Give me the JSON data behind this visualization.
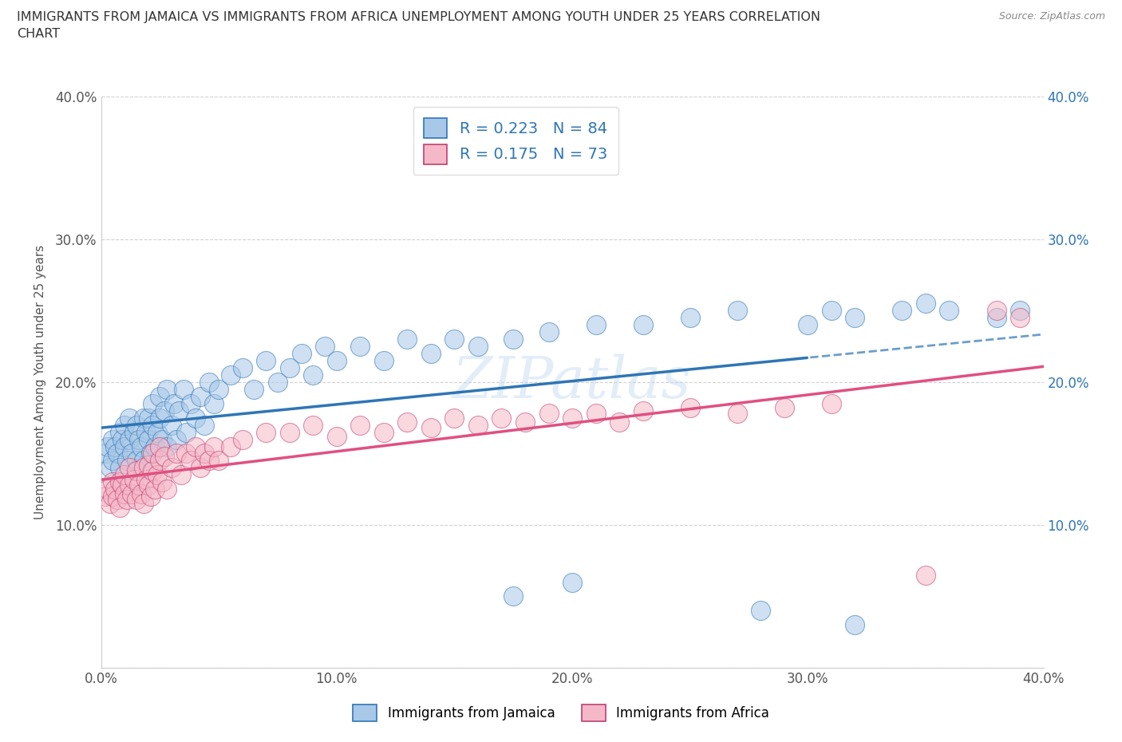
{
  "title": "IMMIGRANTS FROM JAMAICA VS IMMIGRANTS FROM AFRICA UNEMPLOYMENT AMONG YOUTH UNDER 25 YEARS CORRELATION\nCHART",
  "source": "Source: ZipAtlas.com",
  "ylabel": "Unemployment Among Youth under 25 years",
  "legend_label_jamaica": "Immigrants from Jamaica",
  "legend_label_africa": "Immigrants from Africa",
  "xlim": [
    0.0,
    0.4
  ],
  "ylim": [
    0.0,
    0.4
  ],
  "xticks": [
    0.0,
    0.1,
    0.2,
    0.3,
    0.4
  ],
  "yticks": [
    0.0,
    0.1,
    0.2,
    0.3,
    0.4
  ],
  "xticklabels": [
    "0.0%",
    "10.0%",
    "20.0%",
    "30.0%",
    "40.0%"
  ],
  "yticklabels_left": [
    "",
    "10.0%",
    "20.0%",
    "30.0%",
    "40.0%"
  ],
  "yticklabels_right": [
    "",
    "10.0%",
    "20.0%",
    "30.0%",
    "40.0%"
  ],
  "r_jamaica": 0.223,
  "n_jamaica": 84,
  "r_africa": 0.175,
  "n_africa": 73,
  "color_jamaica": "#A8C8E8",
  "color_africa": "#F5B8C8",
  "line_color_jamaica": "#2E75B6",
  "line_color_africa": "#E05080",
  "background_color": "#FFFFFF",
  "jamaica_x": [
    0.002,
    0.003,
    0.004,
    0.005,
    0.005,
    0.006,
    0.007,
    0.008,
    0.008,
    0.009,
    0.01,
    0.01,
    0.011,
    0.012,
    0.012,
    0.013,
    0.014,
    0.015,
    0.015,
    0.016,
    0.017,
    0.018,
    0.018,
    0.019,
    0.02,
    0.02,
    0.021,
    0.022,
    0.022,
    0.023,
    0.024,
    0.025,
    0.025,
    0.026,
    0.027,
    0.028,
    0.028,
    0.03,
    0.031,
    0.032,
    0.033,
    0.035,
    0.036,
    0.038,
    0.04,
    0.042,
    0.044,
    0.046,
    0.048,
    0.05,
    0.055,
    0.06,
    0.065,
    0.07,
    0.075,
    0.08,
    0.085,
    0.09,
    0.095,
    0.1,
    0.11,
    0.12,
    0.13,
    0.14,
    0.15,
    0.16,
    0.175,
    0.19,
    0.21,
    0.23,
    0.25,
    0.27,
    0.3,
    0.31,
    0.32,
    0.34,
    0.35,
    0.36,
    0.38,
    0.39,
    0.175,
    0.2,
    0.28,
    0.32
  ],
  "jamaica_y": [
    0.15,
    0.155,
    0.14,
    0.16,
    0.145,
    0.155,
    0.15,
    0.165,
    0.14,
    0.16,
    0.155,
    0.17,
    0.145,
    0.16,
    0.175,
    0.15,
    0.165,
    0.145,
    0.17,
    0.16,
    0.155,
    0.175,
    0.145,
    0.165,
    0.16,
    0.175,
    0.15,
    0.17,
    0.185,
    0.155,
    0.165,
    0.175,
    0.19,
    0.16,
    0.18,
    0.155,
    0.195,
    0.17,
    0.185,
    0.16,
    0.18,
    0.195,
    0.165,
    0.185,
    0.175,
    0.19,
    0.17,
    0.2,
    0.185,
    0.195,
    0.205,
    0.21,
    0.195,
    0.215,
    0.2,
    0.21,
    0.22,
    0.205,
    0.225,
    0.215,
    0.225,
    0.215,
    0.23,
    0.22,
    0.23,
    0.225,
    0.23,
    0.235,
    0.24,
    0.24,
    0.245,
    0.25,
    0.24,
    0.25,
    0.245,
    0.25,
    0.255,
    0.25,
    0.245,
    0.25,
    0.05,
    0.06,
    0.04,
    0.03
  ],
  "africa_x": [
    0.002,
    0.003,
    0.004,
    0.005,
    0.005,
    0.006,
    0.007,
    0.008,
    0.008,
    0.009,
    0.01,
    0.01,
    0.011,
    0.012,
    0.012,
    0.013,
    0.014,
    0.015,
    0.015,
    0.016,
    0.017,
    0.018,
    0.018,
    0.019,
    0.02,
    0.02,
    0.021,
    0.022,
    0.022,
    0.023,
    0.024,
    0.025,
    0.025,
    0.026,
    0.027,
    0.028,
    0.03,
    0.032,
    0.034,
    0.036,
    0.038,
    0.04,
    0.042,
    0.044,
    0.046,
    0.048,
    0.05,
    0.055,
    0.06,
    0.07,
    0.08,
    0.09,
    0.1,
    0.11,
    0.12,
    0.13,
    0.14,
    0.15,
    0.16,
    0.17,
    0.18,
    0.19,
    0.2,
    0.21,
    0.22,
    0.23,
    0.25,
    0.27,
    0.29,
    0.31,
    0.35,
    0.38,
    0.39
  ],
  "africa_y": [
    0.12,
    0.125,
    0.115,
    0.13,
    0.12,
    0.125,
    0.118,
    0.13,
    0.112,
    0.128,
    0.122,
    0.135,
    0.118,
    0.128,
    0.14,
    0.122,
    0.132,
    0.118,
    0.138,
    0.128,
    0.122,
    0.14,
    0.115,
    0.132,
    0.128,
    0.142,
    0.12,
    0.138,
    0.15,
    0.125,
    0.135,
    0.145,
    0.155,
    0.13,
    0.148,
    0.125,
    0.14,
    0.15,
    0.135,
    0.15,
    0.145,
    0.155,
    0.14,
    0.15,
    0.145,
    0.155,
    0.145,
    0.155,
    0.16,
    0.165,
    0.165,
    0.17,
    0.162,
    0.17,
    0.165,
    0.172,
    0.168,
    0.175,
    0.17,
    0.175,
    0.172,
    0.178,
    0.175,
    0.178,
    0.172,
    0.18,
    0.182,
    0.178,
    0.182,
    0.185,
    0.065,
    0.25,
    0.245
  ]
}
